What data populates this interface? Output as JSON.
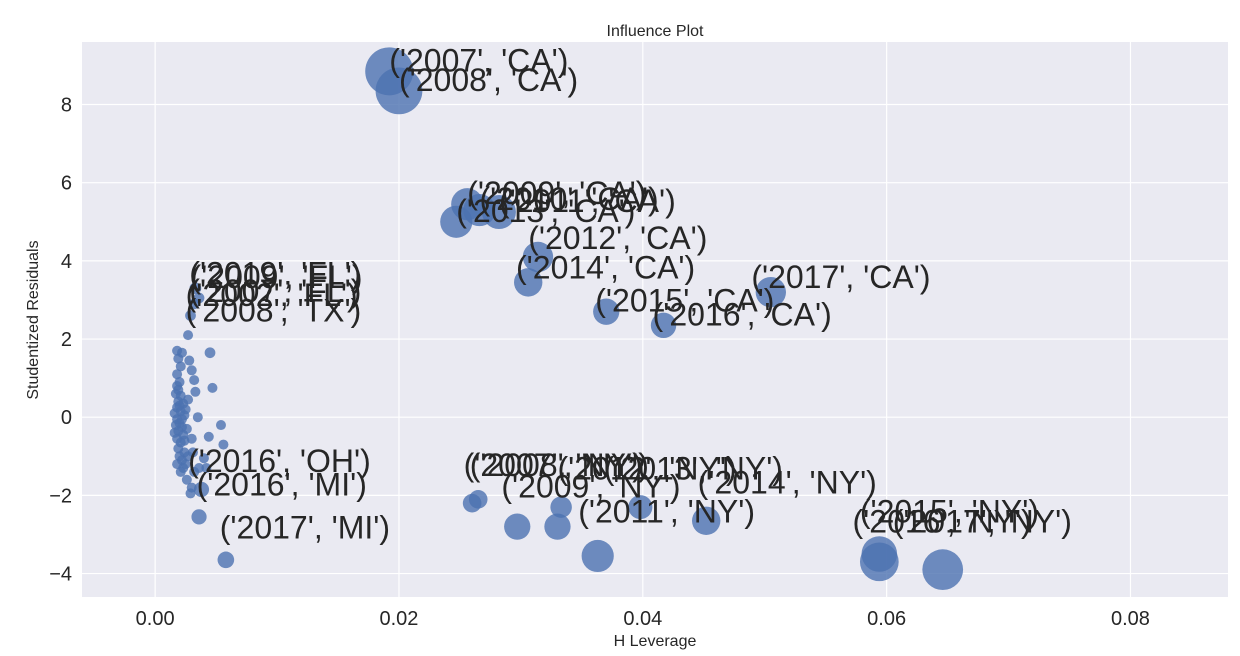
{
  "chart_data": {
    "type": "scatter",
    "title": "Influence Plot",
    "xlabel": "H Leverage",
    "ylabel": "Studentized Residuals",
    "xlim": [
      -0.006,
      0.088
    ],
    "ylim": [
      -4.6,
      9.6
    ],
    "xticks": [
      0.0,
      0.02,
      0.04,
      0.06,
      0.08
    ],
    "xtick_labels": [
      "0.00",
      "0.02",
      "0.04",
      "0.06",
      "0.08"
    ],
    "yticks": [
      -4,
      -2,
      0,
      2,
      4,
      6,
      8
    ],
    "ytick_labels": [
      "−4",
      "−2",
      "0",
      "2",
      "4",
      "6",
      "8"
    ],
    "grid": true,
    "point_color": "#4c72b0",
    "background_color": "#eaeaf2",
    "points": [
      {
        "x": 0.0192,
        "y": 8.85,
        "influence": 1.0
      },
      {
        "x": 0.02,
        "y": 8.35,
        "influence": 0.95
      },
      {
        "x": 0.0247,
        "y": 5.0,
        "influence": 0.45
      },
      {
        "x": 0.0256,
        "y": 5.45,
        "influence": 0.45
      },
      {
        "x": 0.0266,
        "y": 5.3,
        "influence": 0.45
      },
      {
        "x": 0.0282,
        "y": 5.25,
        "influence": 0.5
      },
      {
        "x": 0.0306,
        "y": 3.45,
        "influence": 0.35
      },
      {
        "x": 0.0314,
        "y": 4.1,
        "influence": 0.4
      },
      {
        "x": 0.037,
        "y": 2.7,
        "influence": 0.3
      },
      {
        "x": 0.0417,
        "y": 2.35,
        "influence": 0.28
      },
      {
        "x": 0.0505,
        "y": 3.2,
        "influence": 0.4
      },
      {
        "x": 0.026,
        "y": -2.2,
        "influence": 0.15
      },
      {
        "x": 0.0265,
        "y": -2.1,
        "influence": 0.15
      },
      {
        "x": 0.0297,
        "y": -2.8,
        "influence": 0.3
      },
      {
        "x": 0.033,
        "y": -2.8,
        "influence": 0.3
      },
      {
        "x": 0.0333,
        "y": -2.3,
        "influence": 0.2
      },
      {
        "x": 0.0363,
        "y": -3.55,
        "influence": 0.45
      },
      {
        "x": 0.0398,
        "y": -2.3,
        "influence": 0.25
      },
      {
        "x": 0.0452,
        "y": -2.65,
        "influence": 0.35
      },
      {
        "x": 0.0594,
        "y": -3.5,
        "influence": 0.55
      },
      {
        "x": 0.0594,
        "y": -3.7,
        "influence": 0.65
      },
      {
        "x": 0.0646,
        "y": -3.9,
        "influence": 0.72
      },
      {
        "x": 0.0058,
        "y": -3.65,
        "influence": 0.12
      },
      {
        "x": 0.0038,
        "y": -1.85,
        "influence": 0.1
      },
      {
        "x": 0.0036,
        "y": -2.55,
        "influence": 0.1
      },
      {
        "x": 0.0045,
        "y": 1.65,
        "influence": 0.05
      },
      {
        "x": 0.0047,
        "y": 0.75,
        "influence": 0.04
      },
      {
        "x": 0.0044,
        "y": -0.5,
        "influence": 0.04
      },
      {
        "x": 0.0054,
        "y": -0.2,
        "influence": 0.03
      },
      {
        "x": 0.0056,
        "y": -0.7,
        "influence": 0.03
      },
      {
        "x": 0.0035,
        "y": 0.0,
        "influence": 0.03
      },
      {
        "x": 0.0032,
        "y": 0.95,
        "influence": 0.03
      },
      {
        "x": 0.0033,
        "y": 0.65,
        "influence": 0.03
      },
      {
        "x": 0.0028,
        "y": 1.45,
        "influence": 0.03
      },
      {
        "x": 0.003,
        "y": 1.2,
        "influence": 0.03
      },
      {
        "x": 0.0031,
        "y": -0.9,
        "influence": 0.03
      },
      {
        "x": 0.004,
        "y": -1.05,
        "influence": 0.03
      },
      {
        "x": 0.0042,
        "y": -1.3,
        "influence": 0.03
      },
      {
        "x": 0.0036,
        "y": -1.3,
        "influence": 0.03
      },
      {
        "x": 0.003,
        "y": -0.55,
        "influence": 0.03
      },
      {
        "x": 0.0029,
        "y": 2.6,
        "influence": 0.05
      },
      {
        "x": 0.0027,
        "y": 2.1,
        "influence": 0.04
      },
      {
        "x": 0.0032,
        "y": 2.9,
        "influence": 0.05
      },
      {
        "x": 0.0033,
        "y": 3.3,
        "influence": 0.06
      },
      {
        "x": 0.0036,
        "y": 3.05,
        "influence": 0.05
      },
      {
        "x": 0.003,
        "y": -1.8,
        "influence": 0.03
      },
      {
        "x": 0.0032,
        "y": -1.4,
        "influence": 0.03
      },
      {
        "x": 0.0029,
        "y": -1.95,
        "influence": 0.03
      },
      {
        "x": 0.0026,
        "y": -1.6,
        "influence": 0.03
      },
      {
        "x": 0.0025,
        "y": -1.2,
        "influence": 0.03
      },
      {
        "x": 0.0022,
        "y": 1.65,
        "influence": 0.03
      },
      {
        "x": 0.0021,
        "y": 1.3,
        "influence": 0.03
      },
      {
        "x": 0.0018,
        "y": 1.7,
        "influence": 0.03
      },
      {
        "x": 0.0019,
        "y": 1.5,
        "influence": 0.03
      },
      {
        "x": 0.0018,
        "y": 1.1,
        "influence": 0.03
      },
      {
        "x": 0.002,
        "y": 0.9,
        "influence": 0.03
      },
      {
        "x": 0.0018,
        "y": 0.8,
        "influence": 0.03
      },
      {
        "x": 0.0021,
        "y": 0.55,
        "influence": 0.03
      },
      {
        "x": 0.0019,
        "y": 0.4,
        "influence": 0.03
      },
      {
        "x": 0.0023,
        "y": 0.35,
        "influence": 0.03
      },
      {
        "x": 0.0018,
        "y": 0.25,
        "influence": 0.03
      },
      {
        "x": 0.0021,
        "y": 0.15,
        "influence": 0.03
      },
      {
        "x": 0.0024,
        "y": 0.05,
        "influence": 0.03
      },
      {
        "x": 0.0018,
        "y": -0.05,
        "influence": 0.03
      },
      {
        "x": 0.002,
        "y": -0.15,
        "influence": 0.03
      },
      {
        "x": 0.0022,
        "y": -0.25,
        "influence": 0.03
      },
      {
        "x": 0.0019,
        "y": -0.35,
        "influence": 0.03
      },
      {
        "x": 0.0023,
        "y": -0.45,
        "influence": 0.03
      },
      {
        "x": 0.0018,
        "y": -0.55,
        "influence": 0.03
      },
      {
        "x": 0.0021,
        "y": -0.65,
        "influence": 0.03
      },
      {
        "x": 0.0019,
        "y": -0.8,
        "influence": 0.03
      },
      {
        "x": 0.0024,
        "y": -0.9,
        "influence": 0.03
      },
      {
        "x": 0.002,
        "y": -1.0,
        "influence": 0.03
      },
      {
        "x": 0.0022,
        "y": -1.1,
        "influence": 0.03
      },
      {
        "x": 0.0018,
        "y": -1.2,
        "influence": 0.03
      },
      {
        "x": 0.0023,
        "y": -1.3,
        "influence": 0.03
      },
      {
        "x": 0.0021,
        "y": -1.4,
        "influence": 0.03
      },
      {
        "x": 0.0025,
        "y": 0.2,
        "influence": 0.03
      },
      {
        "x": 0.0026,
        "y": -0.3,
        "influence": 0.03
      },
      {
        "x": 0.0017,
        "y": 0.6,
        "influence": 0.03
      },
      {
        "x": 0.0017,
        "y": -0.2,
        "influence": 0.03
      },
      {
        "x": 0.0016,
        "y": 0.1,
        "influence": 0.03
      },
      {
        "x": 0.0016,
        "y": -0.4,
        "influence": 0.03
      },
      {
        "x": 0.002,
        "y": 0.3,
        "influence": 0.03
      },
      {
        "x": 0.0022,
        "y": -0.05,
        "influence": 0.03
      },
      {
        "x": 0.0019,
        "y": 0.7,
        "influence": 0.03
      },
      {
        "x": 0.0024,
        "y": -0.6,
        "influence": 0.03
      },
      {
        "x": 0.0027,
        "y": -1.0,
        "influence": 0.03
      },
      {
        "x": 0.0027,
        "y": 0.45,
        "influence": 0.03
      }
    ],
    "annotations": [
      {
        "text": "('2007', 'CA')",
        "x": 0.0192,
        "y": 8.85
      },
      {
        "text": "('2008', 'CA')",
        "x": 0.02,
        "y": 8.35
      },
      {
        "text": "('2009', 'CA')",
        "x": 0.0256,
        "y": 5.45
      },
      {
        "text": "('2010', 'CA')",
        "x": 0.0266,
        "y": 5.3
      },
      {
        "text": "('2011', 'CA')",
        "x": 0.0282,
        "y": 5.25
      },
      {
        "text": "('2013', 'CA')",
        "x": 0.0247,
        "y": 5.0
      },
      {
        "text": "('2012', 'CA')",
        "x": 0.0306,
        "y": 4.3
      },
      {
        "text": "('2014', 'CA')",
        "x": 0.0296,
        "y": 3.55
      },
      {
        "text": "('2015', 'CA')",
        "x": 0.0361,
        "y": 2.7
      },
      {
        "text": "('2016', 'CA')",
        "x": 0.0408,
        "y": 2.35
      },
      {
        "text": "('2017', 'CA')",
        "x": 0.0489,
        "y": 3.3
      },
      {
        "text": "('2019', 'FL')",
        "x": 0.0028,
        "y": 3.4
      },
      {
        "text": "('2009', 'FL')",
        "x": 0.0029,
        "y": 3.3
      },
      {
        "text": "('2007', 'FL')",
        "x": 0.0028,
        "y": 2.95
      },
      {
        "text": "('2002', 'FL')",
        "x": 0.0025,
        "y": 2.85
      },
      {
        "text": "('2008', 'TX')",
        "x": 0.0025,
        "y": 2.45
      },
      {
        "text": "('2016', 'OH')",
        "x": 0.0027,
        "y": -1.4
      },
      {
        "text": "('2016', 'MI')",
        "x": 0.0034,
        "y": -2.0
      },
      {
        "text": "('2017', 'MI')",
        "x": 0.0053,
        "y": -3.1
      },
      {
        "text": "('2007', 'NY')",
        "x": 0.0253,
        "y": -1.5
      },
      {
        "text": "('2008', 'NY')",
        "x": 0.0258,
        "y": -1.5
      },
      {
        "text": "('2012', 'NY')",
        "x": 0.033,
        "y": -1.6
      },
      {
        "text": "('2013', 'NY')",
        "x": 0.0368,
        "y": -1.6
      },
      {
        "text": "('2014', 'NY')",
        "x": 0.0445,
        "y": -1.95
      },
      {
        "text": "('2009', 'NY')",
        "x": 0.0284,
        "y": -2.05
      },
      {
        "text": "('2011', 'NY')",
        "x": 0.0347,
        "y": -2.7
      },
      {
        "text": "('2015', 'NY')",
        "x": 0.0578,
        "y": -2.7
      },
      {
        "text": "('2016', 'NY')",
        "x": 0.0572,
        "y": -2.95
      },
      {
        "text": "('2017', 'NY')",
        "x": 0.0605,
        "y": -2.95
      }
    ]
  }
}
